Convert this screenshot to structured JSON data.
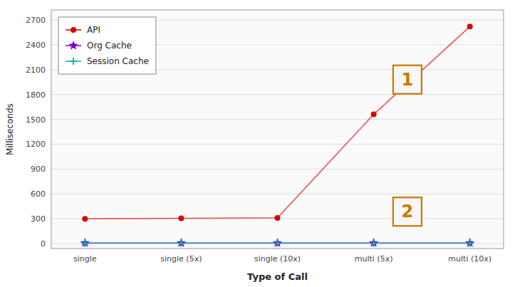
{
  "chart_data": {
    "type": "line",
    "xlabel": "Type of Call",
    "ylabel": "Milliseconds",
    "categories": [
      "single",
      "single (5x)",
      "single (10x)",
      "multi (5x)",
      "multi (10x)"
    ],
    "series": [
      {
        "name": "API",
        "color": "#dd0000",
        "marker": "circle",
        "values": [
          300,
          305,
          310,
          1560,
          2620
        ]
      },
      {
        "name": "Org Cache",
        "color": "#7700cc",
        "marker": "star",
        "values": [
          8,
          8,
          8,
          8,
          8
        ]
      },
      {
        "name": "Session Cache",
        "color": "#00bbaa",
        "marker": "plus",
        "values": [
          3,
          3,
          3,
          3,
          3
        ]
      }
    ],
    "ylim": [
      -60,
      2820
    ],
    "yticks": [
      0,
      300,
      600,
      900,
      1200,
      1500,
      1800,
      2100,
      2400,
      2700
    ],
    "grid": true,
    "legend": "upper left",
    "annotations": [
      {
        "text": "1",
        "x": 3.35,
        "y": 1980,
        "color": "#cc7700"
      },
      {
        "text": "2",
        "x": 3.35,
        "y": 385,
        "color": "#cc7700"
      }
    ]
  }
}
